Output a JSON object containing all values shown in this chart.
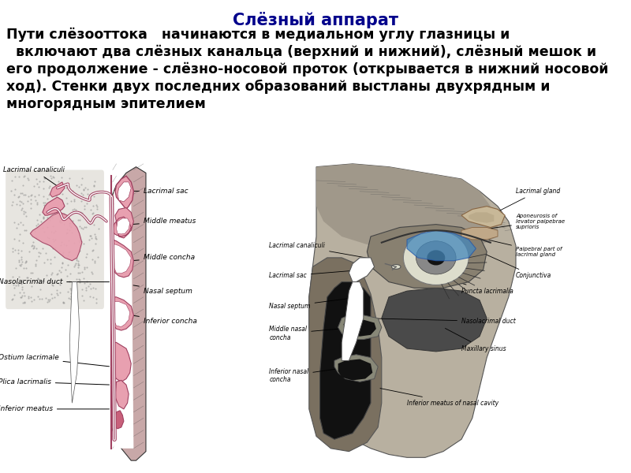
{
  "title": "Слёзный аппарат",
  "title_color": "#00008B",
  "title_fontsize": 15,
  "body_text_lines": [
    "Пути слёзооттока   начинаются в медиальном углу глазницы и",
    "  включают два слёзных канальца (верхний и нижний), слёзный мешок и",
    "его продолжение - слёзно-носовой проток (открывается в нижний носовой",
    "ход). Стенки двух последних образований выстланы двухрядным и",
    "многорядным эпителием"
  ],
  "body_fontsize": 12.5,
  "background_color": "#ffffff",
  "pink": "#c8607a",
  "pink_light": "#e8a0b0",
  "pink_dark": "#a04060",
  "gray_dot": "#d8d4cc",
  "hatch_color": "#b09090"
}
